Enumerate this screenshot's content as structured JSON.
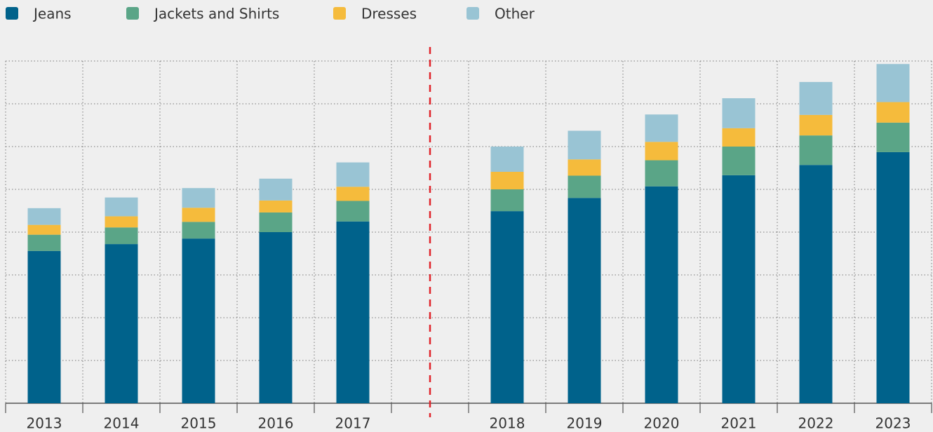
{
  "chart_data": {
    "type": "stacked_bar",
    "categories": [
      "2013",
      "2014",
      "2015",
      "2016",
      "2017",
      null,
      "2018",
      "2019",
      "2020",
      "2021",
      "2022",
      "2023"
    ],
    "series": [
      {
        "name": "Jeans",
        "color": "#00628b",
        "values": [
          3.56,
          3.72,
          3.85,
          4.0,
          4.25,
          null,
          4.49,
          4.8,
          5.07,
          5.33,
          5.57,
          5.87
        ]
      },
      {
        "name": "Jackets and Shirts",
        "color": "#5aa587",
        "values": [
          0.38,
          0.39,
          0.39,
          0.46,
          0.48,
          null,
          0.51,
          0.52,
          0.61,
          0.67,
          0.69,
          0.69
        ]
      },
      {
        "name": "Dresses",
        "color": "#f5bb3c",
        "values": [
          0.23,
          0.26,
          0.33,
          0.28,
          0.33,
          null,
          0.41,
          0.38,
          0.43,
          0.43,
          0.48,
          0.48
        ]
      },
      {
        "name": "Other",
        "color": "#99c4d4",
        "values": [
          0.39,
          0.44,
          0.46,
          0.51,
          0.57,
          null,
          0.59,
          0.67,
          0.64,
          0.7,
          0.77,
          0.89
        ]
      }
    ],
    "ylim": [
      0,
      8
    ],
    "yticks": [
      0,
      1,
      2,
      3,
      4,
      5,
      6,
      7,
      8
    ],
    "grid": true,
    "legend": "top"
  }
}
